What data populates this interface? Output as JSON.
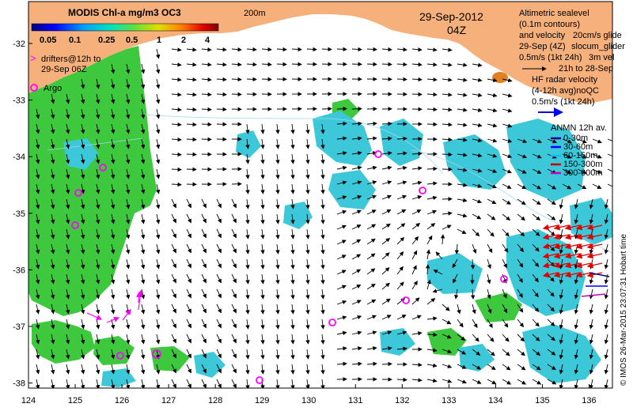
{
  "title": "MODIS Chl-a mg/m3 OC3",
  "date": "29-Sep-2012",
  "time": "04Z",
  "contour_label": "200m",
  "colorbar": {
    "ticks": [
      "0.05",
      "0.1",
      "0.25",
      "0.5",
      "1",
      "2",
      "4"
    ],
    "colors": [
      "#000080",
      "#0000ff",
      "#0080ff",
      "#00c0ff",
      "#00e0c0",
      "#30d060",
      "#80e000",
      "#e0e000",
      "#ffb000",
      "#ff6000",
      "#e00000",
      "#900000"
    ]
  },
  "x_ticks": [
    "124",
    "125",
    "126",
    "127",
    "128",
    "129",
    "130",
    "131",
    "132",
    "133",
    "134",
    "135",
    "136"
  ],
  "y_ticks": [
    "-32",
    "-33",
    "-34",
    "-35",
    "-36",
    "-37",
    "-38"
  ],
  "legend_drifters": {
    "line1": "drifters@12h to",
    "line2": "29-Sep 06Z"
  },
  "legend_argo": "Argo",
  "legend_altimetry": {
    "line1": "Altimetric sealevel",
    "line2": "(0.1m contours)",
    "line3": "and velocity",
    "line4": "20cm/s glide",
    "line5": "29-Sep (4Z)",
    "line6": "slocum_glider",
    "line7": "0.5m/s (1kt 24h)",
    "line8": "3m vel",
    "line9": "21h to 28-Sep"
  },
  "legend_hf": {
    "line1": "HF radar velocity",
    "line2": "(4-12h avg)noQC",
    "line3": "0.5m/s (1kt 24h)"
  },
  "legend_anmn": {
    "title": "ANMN 12h av.",
    "items": [
      {
        "label": "0-30m",
        "color": "#000080"
      },
      {
        "label": "30-60m",
        "color": "#0000ff"
      },
      {
        "label": "60-150m",
        "color": "#00c0ff"
      },
      {
        "label": "150-300m",
        "color": "#c00000"
      },
      {
        "label": "300-600m",
        "color": "#c000c0"
      }
    ]
  },
  "credit": "© IMOS 26-Mar-2015 23:07:31 Hobart time",
  "colors": {
    "land": "#f5b07c",
    "chl_green": "#3ec83e",
    "chl_cyan": "#3cc8d8",
    "arrow": "#000000",
    "drifter": "#ff00ff",
    "hf_radar": "#e00000"
  }
}
